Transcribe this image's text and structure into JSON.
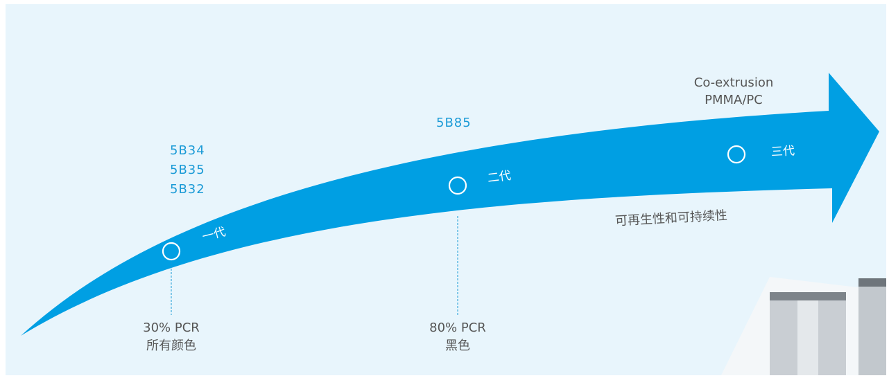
{
  "arrow": {
    "head_label": [
      "Co-extrusion",
      "PMMA/PC"
    ],
    "bottom_label": "可再生性和可持续性"
  },
  "stages": [
    {
      "label": "一代",
      "codes": [
        "5B34",
        "5B35",
        "5B32"
      ],
      "note": [
        "30% PCR",
        "所有颜色"
      ]
    },
    {
      "label": "二代",
      "codes": [
        "5B85"
      ],
      "note": [
        "80% PCR",
        "黑色"
      ]
    },
    {
      "label": "三代"
    }
  ]
}
